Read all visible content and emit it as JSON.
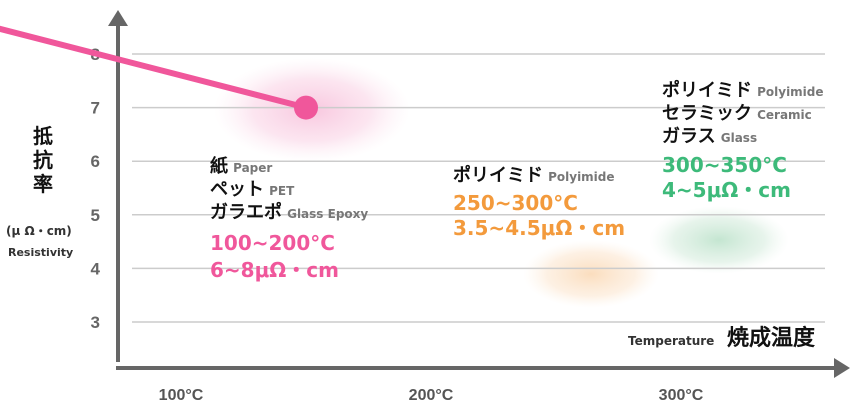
{
  "chart_data": {
    "type": "line",
    "series": [
      {
        "x": [
          "75°C",
          "150°C"
        ],
        "values": [
          7.9,
          7.0
        ]
      }
    ],
    "x_ticks": [
      "100°C",
      "200°C",
      "300°C"
    ],
    "y_ticks": [
      "3",
      "4",
      "5",
      "6",
      "7",
      "8"
    ],
    "ylim": [
      2.5,
      8.7
    ],
    "grid": true,
    "ylabel": {
      "chars": [
        "抵",
        "抗",
        "率"
      ],
      "unit": "(μ Ω・cm)",
      "english": "Resistivity"
    },
    "xlabel": {
      "english": "Temperature",
      "japanese": "焼成温度"
    },
    "zones": [
      {
        "materials": [
          {
            "jp": "紙",
            "en": "Paper"
          },
          {
            "jp": "ペット",
            "en": "PET"
          },
          {
            "jp": "ガラエポ",
            "en": "Glass Epoxy"
          }
        ],
        "temperature": "100~200°C",
        "resistivity": "6~8μΩ・cm",
        "color": "#f0579b"
      },
      {
        "materials": [
          {
            "jp": "ポリイミド",
            "en": "Polyimide"
          }
        ],
        "temperature": "250~300°C",
        "resistivity": "3.5~4.5μΩ・cm",
        "color": "#f39a3c"
      },
      {
        "materials": [
          {
            "jp": "ポリイミド",
            "en": "Polyimide"
          },
          {
            "jp": "セラミック",
            "en": "Ceramic"
          },
          {
            "jp": "ガラス",
            "en": "Glass"
          }
        ],
        "temperature": "300~350°C",
        "resistivity": "4~5μΩ・cm",
        "color": "#3dba7a"
      }
    ],
    "colors": {
      "line": "#f0579b",
      "axis": "#666666",
      "grid": "#cccccc",
      "blob_pink": "#f6b5d4",
      "blob_orange": "#f9d2a8",
      "blob_green": "#b5dfc5"
    }
  }
}
